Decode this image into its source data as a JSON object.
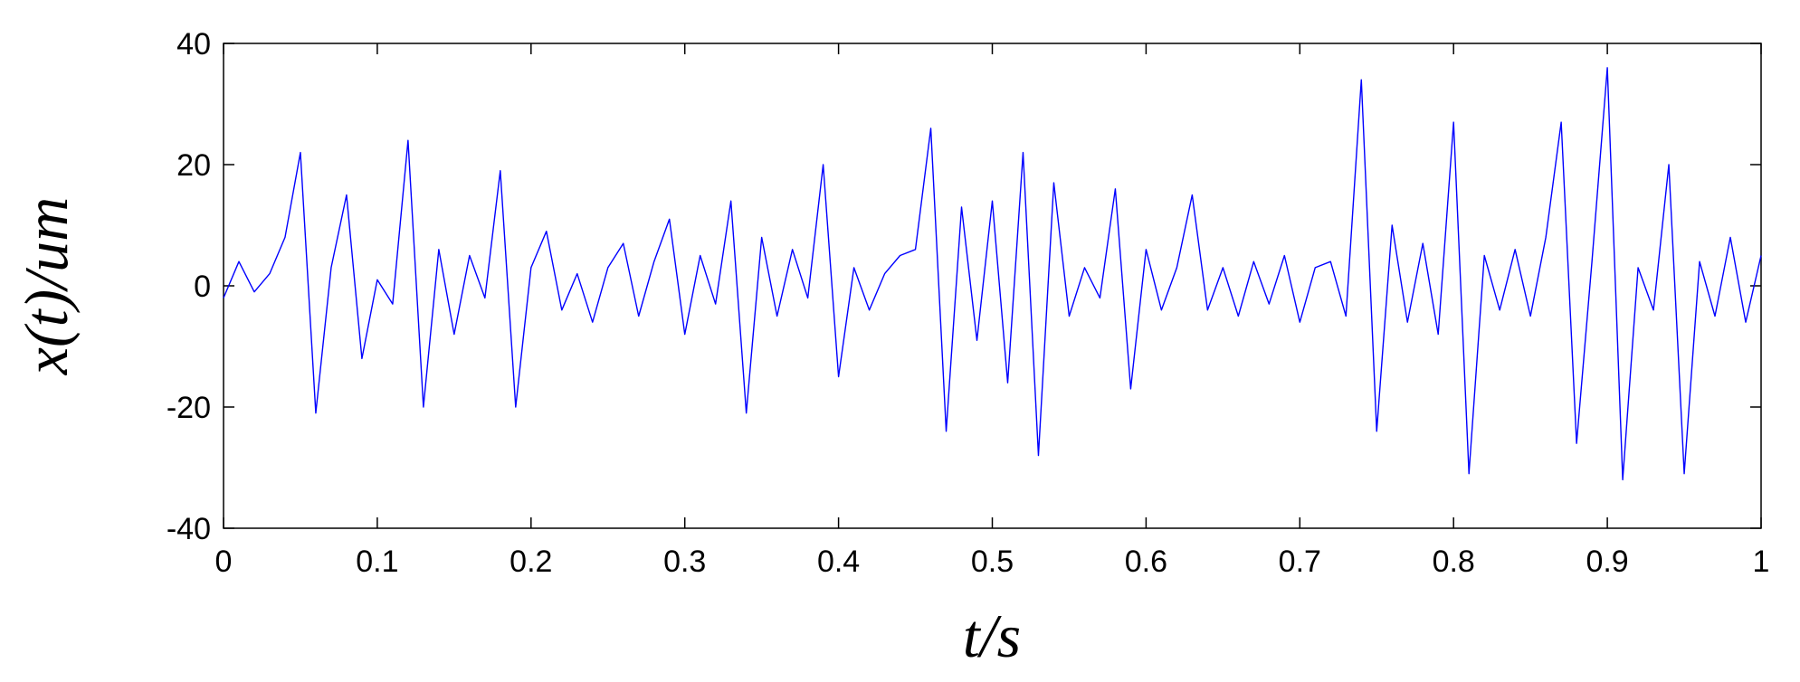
{
  "chart_data": {
    "type": "line",
    "title": "",
    "xlabel": "t/s",
    "ylabel": "x(t)/um",
    "xlim": [
      0,
      1
    ],
    "ylim": [
      -40,
      40
    ],
    "x_ticks": [
      0,
      0.1,
      0.2,
      0.3,
      0.4,
      0.5,
      0.6,
      0.7,
      0.8,
      0.9,
      1
    ],
    "x_tick_labels": [
      "0",
      "0.1",
      "0.2",
      "0.3",
      "0.4",
      "0.5",
      "0.6",
      "0.7",
      "0.8",
      "0.9",
      "1"
    ],
    "y_ticks": [
      -40,
      -20,
      0,
      20,
      40
    ],
    "y_tick_labels": [
      "-40",
      "-20",
      "0",
      "20",
      "40"
    ],
    "grid": false,
    "series": [
      {
        "color": "#0000ff",
        "x": [
          0,
          0.01,
          0.02,
          0.03,
          0.04,
          0.05,
          0.06,
          0.07,
          0.08,
          0.09,
          0.1,
          0.11,
          0.12,
          0.13,
          0.14,
          0.15,
          0.16,
          0.17,
          0.18,
          0.19,
          0.2,
          0.21,
          0.22,
          0.23,
          0.24,
          0.25,
          0.26,
          0.27,
          0.28,
          0.29,
          0.3,
          0.31,
          0.32,
          0.33,
          0.34,
          0.35,
          0.36,
          0.37,
          0.38,
          0.39,
          0.4,
          0.41,
          0.42,
          0.43,
          0.44,
          0.45,
          0.46,
          0.47,
          0.48,
          0.49,
          0.5,
          0.51,
          0.52,
          0.53,
          0.54,
          0.55,
          0.56,
          0.57,
          0.58,
          0.59,
          0.6,
          0.61,
          0.62,
          0.63,
          0.64,
          0.65,
          0.66,
          0.67,
          0.68,
          0.69,
          0.7,
          0.71,
          0.72,
          0.73,
          0.74,
          0.75,
          0.76,
          0.77,
          0.78,
          0.79,
          0.8,
          0.81,
          0.82,
          0.83,
          0.84,
          0.85,
          0.86,
          0.87,
          0.88,
          0.89,
          0.9,
          0.91,
          0.92,
          0.93,
          0.94,
          0.95,
          0.96,
          0.97,
          0.98,
          0.99,
          1
        ],
        "y": [
          -2,
          4,
          -1,
          2,
          8,
          22,
          -21,
          3,
          15,
          -12,
          1,
          -3,
          24,
          -20,
          6,
          -8,
          5,
          -2,
          19,
          -20,
          3,
          9,
          -4,
          2,
          -6,
          3,
          7,
          -5,
          4,
          11,
          -8,
          5,
          -3,
          14,
          -21,
          8,
          -5,
          6,
          -2,
          20,
          -15,
          3,
          -4,
          2,
          5,
          6,
          26,
          -24,
          13,
          -9,
          14,
          -16,
          22,
          -28,
          17,
          -5,
          3,
          -2,
          16,
          -17,
          6,
          -4,
          3,
          15,
          -4,
          3,
          -5,
          4,
          -3,
          5,
          -6,
          3,
          4,
          -5,
          34,
          -24,
          10,
          -6,
          7,
          -8,
          27,
          -31,
          5,
          -4,
          6,
          -5,
          8,
          27,
          -26,
          4,
          36,
          -32,
          3,
          -4,
          20,
          -31,
          4,
          -5,
          8,
          -6,
          5
        ]
      }
    ]
  }
}
